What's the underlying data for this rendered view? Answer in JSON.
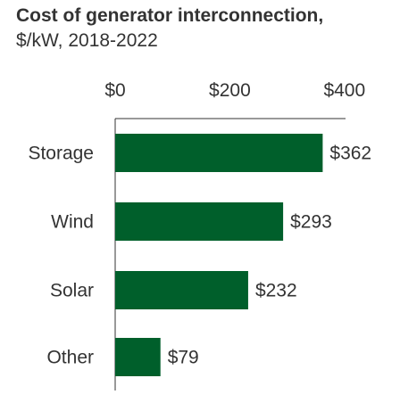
{
  "title": "Cost of generator interconnection,",
  "subtitle": "$/kW, 2018-2022",
  "chart_data": {
    "type": "bar",
    "orientation": "horizontal",
    "title": "Cost of generator interconnection,",
    "subtitle": "$/kW, 2018-2022",
    "categories": [
      "Storage",
      "Wind",
      "Solar",
      "Other"
    ],
    "values": [
      362,
      293,
      232,
      79
    ],
    "value_labels": [
      "$362",
      "$293",
      "$232",
      "$79"
    ],
    "xlim": [
      0,
      400
    ],
    "x_ticks": [
      0,
      200,
      400
    ],
    "x_tick_labels": [
      "$0",
      "$200",
      "$400"
    ],
    "axis_position": "top",
    "grid": false,
    "bar_color": "#005f2b"
  }
}
